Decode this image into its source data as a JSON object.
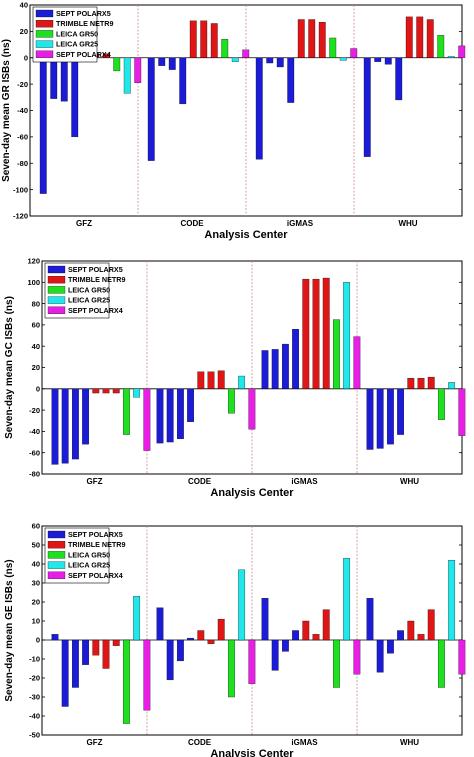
{
  "chart_data": [
    {
      "type": "bar",
      "ylabel": "Seven-day mean GR ISBs (ns)",
      "xlabel": "Analysis Center",
      "ylim": [
        -120,
        40
      ],
      "yticks": [
        -120,
        -100,
        -80,
        -60,
        -40,
        -20,
        0,
        20,
        40
      ],
      "categories": [
        "GFZ",
        "CODE",
        "iGMAS",
        "WHU"
      ],
      "legend_position": "top-left",
      "series": [
        {
          "name": "SEPT POLARX5",
          "color": "#1c1cd6",
          "groups": [
            [
              -103,
              -31,
              -33,
              -60
            ],
            [
              -78,
              -6,
              -9,
              -35
            ],
            [
              -77,
              -4,
              -7,
              -34
            ],
            [
              -75,
              -3,
              -5,
              -32
            ]
          ]
        },
        {
          "name": "TRIMBLE NETR9",
          "color": "#e01515",
          "groups": [
            [
              3,
              3,
              3
            ],
            [
              28,
              28,
              26
            ],
            [
              29,
              29,
              27
            ],
            [
              31,
              31,
              29
            ]
          ]
        },
        {
          "name": "LEICA GR50",
          "color": "#1ee01e",
          "groups": [
            [
              -10
            ],
            [
              14
            ],
            [
              15
            ],
            [
              17
            ]
          ]
        },
        {
          "name": "LEICA GR25",
          "color": "#20e8ea",
          "groups": [
            [
              -27
            ],
            [
              -3
            ],
            [
              -2
            ],
            [
              1
            ]
          ]
        },
        {
          "name": "SEPT POLARX4",
          "color": "#e81ee6",
          "groups": [
            [
              -19
            ],
            [
              6
            ],
            [
              7
            ],
            [
              9
            ]
          ]
        }
      ]
    },
    {
      "type": "bar",
      "ylabel": "Seven-day mean GC ISBs (ns)",
      "xlabel": "Analysis Center",
      "ylim": [
        -80,
        120
      ],
      "yticks": [
        -80,
        -60,
        -40,
        -20,
        0,
        20,
        40,
        60,
        80,
        100,
        120
      ],
      "categories": [
        "GFZ",
        "CODE",
        "iGMAS",
        "WHU"
      ],
      "legend_position": "top-left",
      "series": [
        {
          "name": "SEPT POLARX5",
          "color": "#1c1cd6",
          "groups": [
            [
              -71,
              -70,
              -66,
              -52
            ],
            [
              -51,
              -50,
              -47,
              -31
            ],
            [
              36,
              37,
              42,
              56
            ],
            [
              -57,
              -56,
              -52,
              -43
            ]
          ]
        },
        {
          "name": "TRIMBLE NETR9",
          "color": "#e01515",
          "groups": [
            [
              -4,
              -4,
              -4
            ],
            [
              16,
              16,
              17
            ],
            [
              103,
              103,
              104
            ],
            [
              10,
              10,
              11
            ]
          ]
        },
        {
          "name": "LEICA GR50",
          "color": "#1ee01e",
          "groups": [
            [
              -43
            ],
            [
              -23
            ],
            [
              65
            ],
            [
              -29
            ]
          ]
        },
        {
          "name": "LEICA GR25",
          "color": "#20e8ea",
          "groups": [
            [
              -8
            ],
            [
              12
            ],
            [
              100
            ],
            [
              6
            ]
          ]
        },
        {
          "name": "SEPT POLARX4",
          "color": "#e81ee6",
          "groups": [
            [
              -58
            ],
            [
              -38
            ],
            [
              49
            ],
            [
              -44
            ]
          ]
        }
      ]
    },
    {
      "type": "bar",
      "ylabel": "Seven-day mean GE ISBs (ns)",
      "xlabel": "Analysis Center",
      "ylim": [
        -50,
        60
      ],
      "yticks": [
        -50,
        -40,
        -30,
        -20,
        -10,
        0,
        10,
        20,
        30,
        40,
        50,
        60
      ],
      "categories": [
        "GFZ",
        "CODE",
        "iGMAS",
        "WHU"
      ],
      "legend_position": "top-left",
      "series": [
        {
          "name": "SEPT POLARX5",
          "color": "#1c1cd6",
          "groups": [
            [
              3,
              -35,
              -25,
              -13
            ],
            [
              17,
              -21,
              -11,
              1
            ],
            [
              22,
              -16,
              -6,
              5
            ],
            [
              22,
              -17,
              -7,
              5
            ]
          ]
        },
        {
          "name": "TRIMBLE NETR9",
          "color": "#e01515",
          "groups": [
            [
              -8,
              -15,
              -3
            ],
            [
              5,
              -2,
              11
            ],
            [
              10,
              3,
              16
            ],
            [
              10,
              3,
              16
            ]
          ]
        },
        {
          "name": "LEICA GR50",
          "color": "#1ee01e",
          "groups": [
            [
              -44
            ],
            [
              -30
            ],
            [
              -25
            ],
            [
              -25
            ]
          ]
        },
        {
          "name": "LEICA GR25",
          "color": "#20e8ea",
          "groups": [
            [
              23
            ],
            [
              37
            ],
            [
              43
            ],
            [
              42
            ]
          ]
        },
        {
          "name": "SEPT POLARX4",
          "color": "#e81ee6",
          "groups": [
            [
              -37
            ],
            [
              -23
            ],
            [
              -18
            ],
            [
              -18
            ]
          ]
        }
      ]
    }
  ]
}
